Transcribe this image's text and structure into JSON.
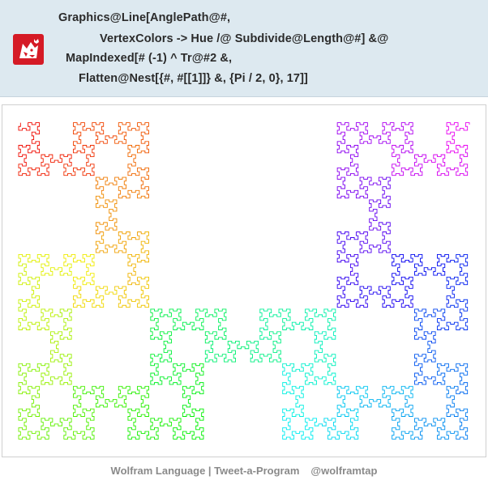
{
  "code": {
    "lines": [
      "Graphics@Line[AnglePath@#,",
      "VertexColors -> Hue /@ Subdivide@Length@#] &@",
      "MapIndexed[# (-1) ^ Tr@#2 &,",
      "Flatten@Nest[{#, #[[1]]} &, {Pi / 2, 0}, 17]]"
    ]
  },
  "footer": {
    "left_text": "Wolfram Language | Tweet-a-Program",
    "handle": "@wolframtap"
  },
  "colors": {
    "panel_background": "#dde9f0",
    "logo_red": "#d51a25",
    "footer_text": "#8a8a8a"
  },
  "icons": {
    "logo": "wolfram-wolf-icon"
  },
  "graphic": {
    "description_kind": "hue-colored fractal curve",
    "nest_depth": 17
  }
}
